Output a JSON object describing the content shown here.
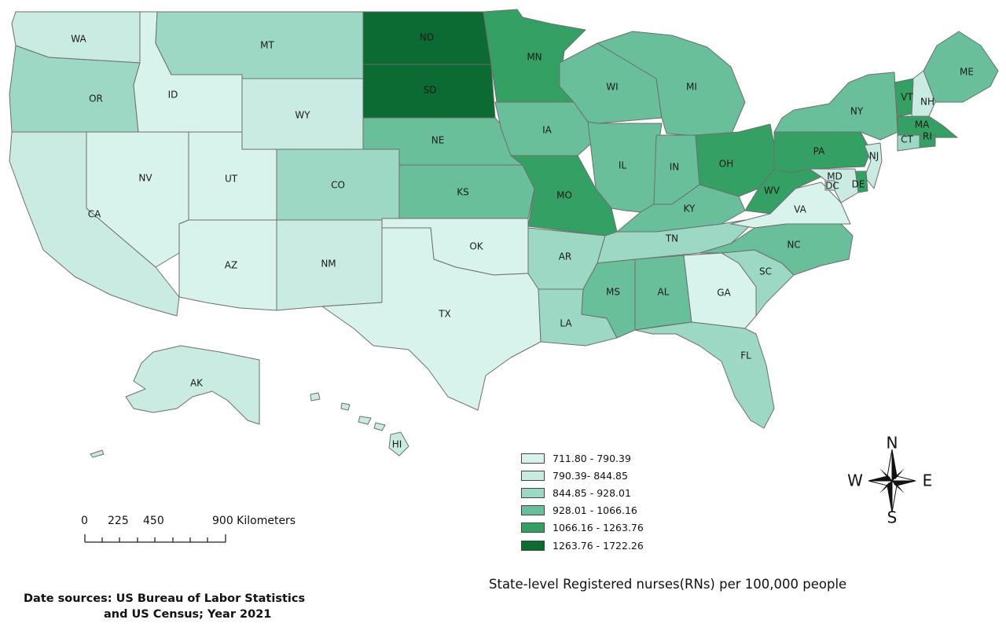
{
  "map": {
    "states": [
      {
        "abbr": "WA",
        "class": 1
      },
      {
        "abbr": "OR",
        "class": 2
      },
      {
        "abbr": "CA",
        "class": 1
      },
      {
        "abbr": "ID",
        "class": 0
      },
      {
        "abbr": "NV",
        "class": 0
      },
      {
        "abbr": "MT",
        "class": 2
      },
      {
        "abbr": "WY",
        "class": 1
      },
      {
        "abbr": "UT",
        "class": 0
      },
      {
        "abbr": "AZ",
        "class": 0
      },
      {
        "abbr": "CO",
        "class": 2
      },
      {
        "abbr": "NM",
        "class": 1
      },
      {
        "abbr": "ND",
        "class": 5
      },
      {
        "abbr": "SD",
        "class": 5
      },
      {
        "abbr": "NE",
        "class": 3
      },
      {
        "abbr": "KS",
        "class": 3
      },
      {
        "abbr": "OK",
        "class": 0
      },
      {
        "abbr": "TX",
        "class": 0
      },
      {
        "abbr": "MN",
        "class": 4
      },
      {
        "abbr": "IA",
        "class": 3
      },
      {
        "abbr": "MO",
        "class": 4
      },
      {
        "abbr": "AR",
        "class": 2
      },
      {
        "abbr": "LA",
        "class": 2
      },
      {
        "abbr": "WI",
        "class": 3
      },
      {
        "abbr": "IL",
        "class": 3
      },
      {
        "abbr": "MI",
        "class": 3
      },
      {
        "abbr": "IN",
        "class": 3
      },
      {
        "abbr": "OH",
        "class": 4
      },
      {
        "abbr": "KY",
        "class": 3
      },
      {
        "abbr": "TN",
        "class": 2
      },
      {
        "abbr": "MS",
        "class": 3
      },
      {
        "abbr": "AL",
        "class": 3
      },
      {
        "abbr": "GA",
        "class": 0
      },
      {
        "abbr": "FL",
        "class": 2
      },
      {
        "abbr": "SC",
        "class": 2
      },
      {
        "abbr": "NC",
        "class": 3
      },
      {
        "abbr": "VA",
        "class": 0
      },
      {
        "abbr": "WV",
        "class": 4
      },
      {
        "abbr": "PA",
        "class": 4
      },
      {
        "abbr": "NY",
        "class": 3
      },
      {
        "abbr": "VT",
        "class": 4
      },
      {
        "abbr": "NH",
        "class": 1
      },
      {
        "abbr": "ME",
        "class": 3
      },
      {
        "abbr": "MA",
        "class": 4
      },
      {
        "abbr": "RI",
        "class": 4
      },
      {
        "abbr": "CT",
        "class": 2
      },
      {
        "abbr": "NJ",
        "class": 1
      },
      {
        "abbr": "DE",
        "class": 4
      },
      {
        "abbr": "MD",
        "class": 1
      },
      {
        "abbr": "DC",
        "class": 1
      },
      {
        "abbr": "AK",
        "class": 1
      },
      {
        "abbr": "HI",
        "class": 1
      }
    ]
  },
  "legend": {
    "title": "State-level Registered nurses(RNs) per 100,000 people",
    "classes": [
      {
        "label": "711.80 - 790.39",
        "color": "#d8f3ec"
      },
      {
        "label": "790.39- 844.85",
        "color": "#c9ebe1"
      },
      {
        "label": "844.85 - 928.01",
        "color": "#9dd8c4"
      },
      {
        "label": "928.01 - 1066.16",
        "color": "#68bf9a"
      },
      {
        "label": "1066.16 - 1263.76",
        "color": "#35a063"
      },
      {
        "label": "1263.76 - 1722.26",
        "color": "#0b6b32"
      }
    ]
  },
  "scale_bar": {
    "labels": [
      "0",
      "225",
      "450",
      "900 Kilometers"
    ]
  },
  "north_arrow": {
    "n": "N",
    "e": "E",
    "s": "S",
    "w": "W"
  },
  "source": {
    "line1": "Date sources: US Bureau of Labor Statistics",
    "line2": "and US Census; Year 2021"
  }
}
